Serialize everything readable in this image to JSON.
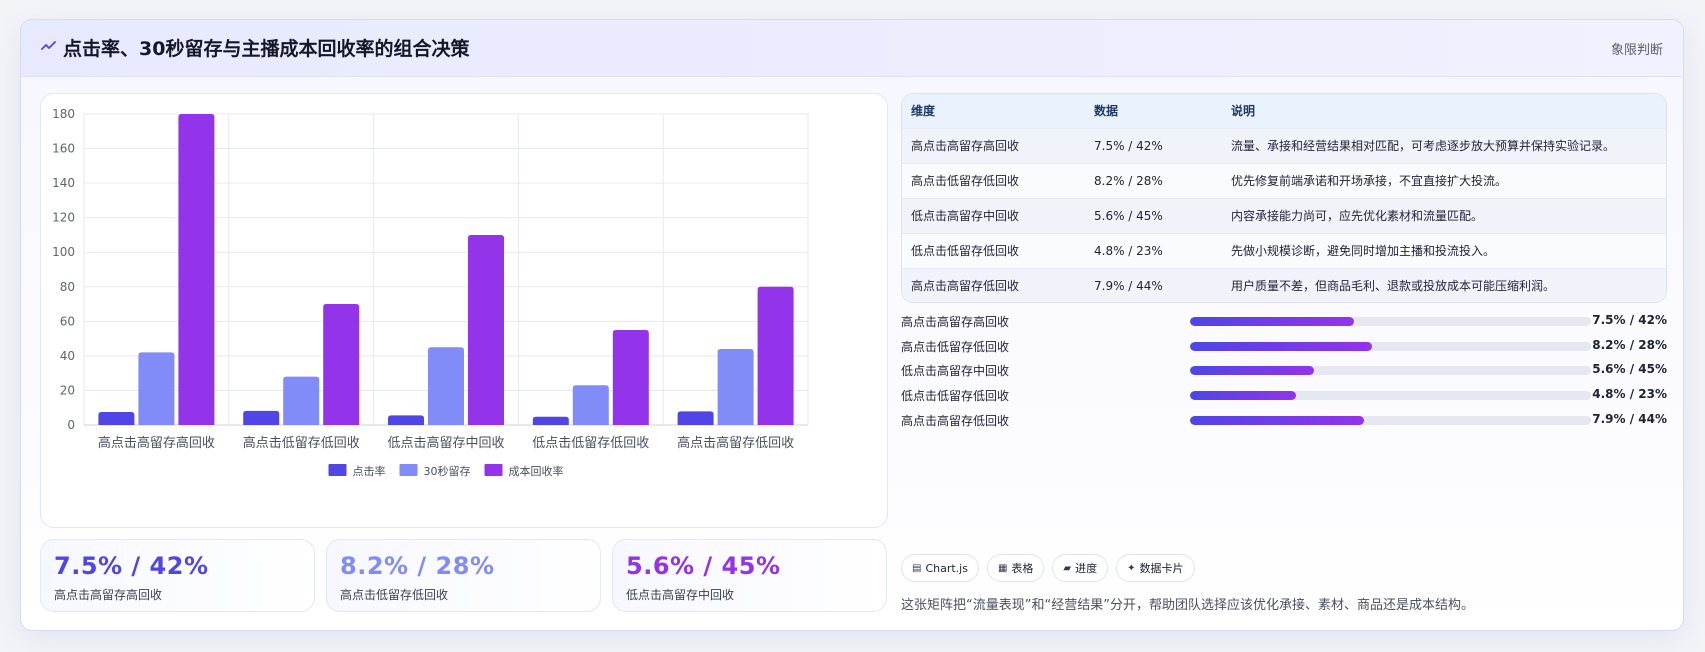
{
  "header": {
    "icon": "trend-line-icon",
    "title": "点击率、30秒留存与主播成本回收率的组合决策",
    "tag": "象限判断"
  },
  "colors": {
    "accent": "#4f46e5",
    "series": [
      "#4f46e5",
      "#818cf8",
      "#9333ea"
    ],
    "progress_gradient": [
      "#4f46e5",
      "#9333ea"
    ]
  },
  "chart_data": {
    "type": "bar",
    "categories": [
      "高点击高留存高回收",
      "高点击低留存低回收",
      "低点击高留存中回收",
      "低点击低留存低回收",
      "高点击高留存低回收"
    ],
    "series": [
      {
        "name": "点击率",
        "values": [
          7.5,
          8.2,
          5.6,
          4.8,
          7.9
        ]
      },
      {
        "name": "30秒留存",
        "values": [
          42,
          28,
          45,
          23,
          44
        ]
      },
      {
        "name": "成本回收率",
        "values": [
          180,
          70,
          110,
          55,
          80
        ]
      }
    ],
    "ylim": [
      0,
      180
    ],
    "yticks": [
      0,
      20,
      40,
      60,
      80,
      100,
      120,
      140,
      160,
      180
    ],
    "grid": true,
    "legend": "bottom"
  },
  "table": {
    "headers": [
      "维度",
      "数据",
      "说明"
    ],
    "rows": [
      [
        "高点击高留存高回收",
        "7.5% / 42%",
        "流量、承接和经营结果相对匹配，可考虑逐步放大预算并保持实验记录。"
      ],
      [
        "高点击低留存低回收",
        "8.2% / 28%",
        "优先修复前端承诺和开场承接，不宜直接扩大投流。"
      ],
      [
        "低点击高留存中回收",
        "5.6% / 45%",
        "内容承接能力尚可，应先优化素材和流量匹配。"
      ],
      [
        "低点击低留存低回收",
        "4.8% / 23%",
        "先做小规模诊断，避免同时增加主播和投流投入。"
      ],
      [
        "高点击高留存低回收",
        "7.9% / 44%",
        "用户质量不差，但商品毛利、退款或投放成本可能压缩利润。"
      ]
    ]
  },
  "progress": [
    {
      "label": "高点击高留存高回收",
      "value": "7.5% / 42%",
      "level": 0.41
    },
    {
      "label": "高点击低留存低回收",
      "value": "8.2% / 28%",
      "level": 0.455
    },
    {
      "label": "低点击高留存中回收",
      "value": "5.6% / 45%",
      "level": 0.31
    },
    {
      "label": "低点击低留存低回收",
      "value": "4.8% / 23%",
      "level": 0.265
    },
    {
      "label": "高点击高留存低回收",
      "value": "7.9% / 44%",
      "level": 0.435
    }
  ],
  "stats": [
    {
      "value": "7.5% / 42%",
      "label": "高点击高留存高回收",
      "color": "#4f46e5"
    },
    {
      "value": "8.2% / 28%",
      "label": "高点击低留存低回收",
      "color": "#818cf8"
    },
    {
      "value": "5.6% / 45%",
      "label": "低点击高留存中回收",
      "color": "#9333ea"
    }
  ],
  "chips": [
    {
      "icon": "chart-icon",
      "glyph": "▤",
      "label": "Chart.js"
    },
    {
      "icon": "table-icon",
      "glyph": "▦",
      "label": "表格"
    },
    {
      "icon": "progress-icon",
      "glyph": "▰",
      "label": "进度"
    },
    {
      "icon": "sparkle-icon",
      "glyph": "✦",
      "label": "数据卡片"
    }
  ],
  "footnote": "这张矩阵把“流量表现”和“经营结果”分开，帮助团队选择应该优化承接、素材、商品还是成本结构。"
}
